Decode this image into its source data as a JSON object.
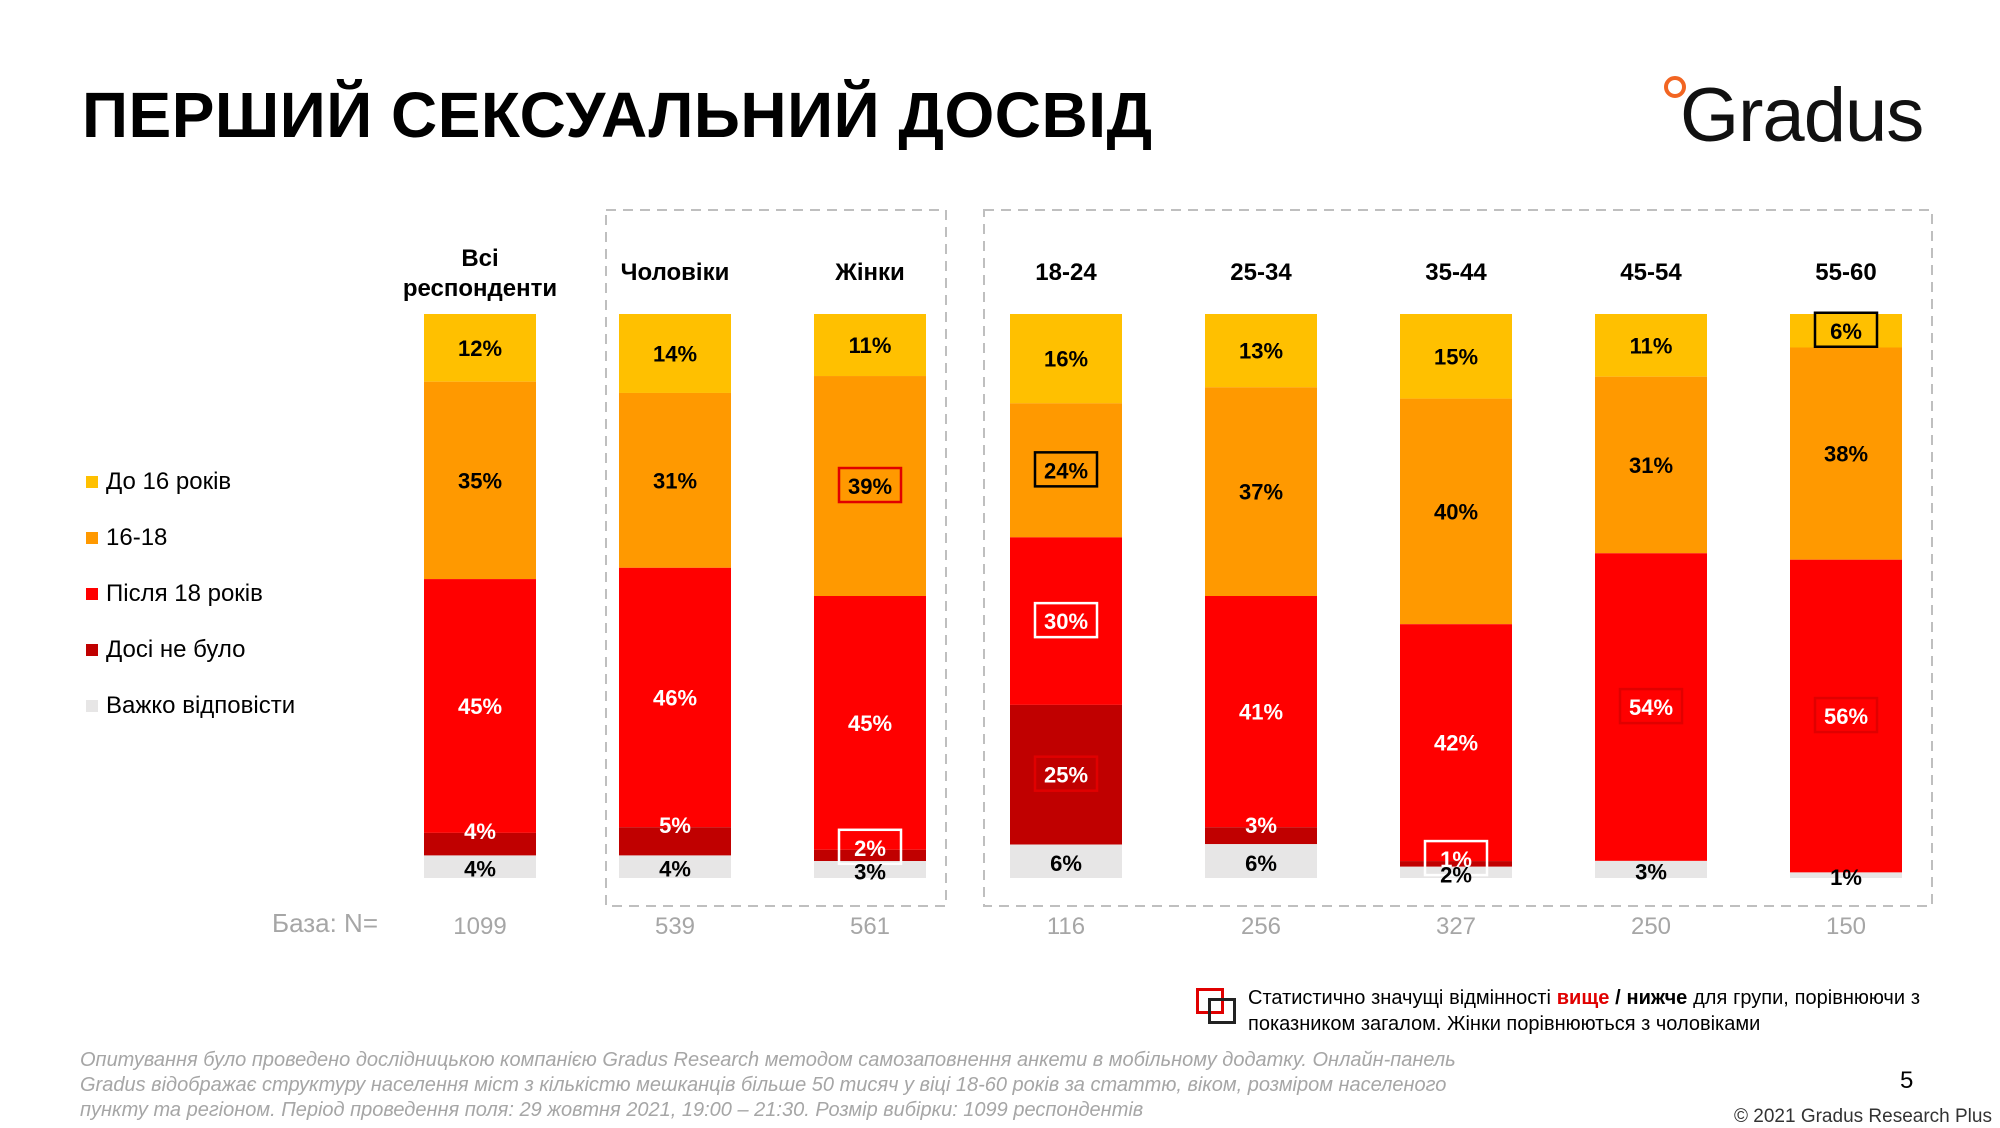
{
  "title": "ПЕРШИЙ СЕКСУАЛЬНИЙ ДОСВІД",
  "logo": "Gradus",
  "legend": [
    {
      "label": "До 16 років",
      "color": "#ffc000"
    },
    {
      "label": "16-18",
      "color": "#ff9900"
    },
    {
      "label": "Після 18 років",
      "color": "#ff0000"
    },
    {
      "label": "Досі не було",
      "color": "#c00000"
    },
    {
      "label": "Важко відповісти",
      "color": "#e7e6e6"
    }
  ],
  "base_label": "База: N=",
  "chart_data": {
    "type": "bar",
    "stacked": true,
    "title": "ПЕРШИЙ СЕКСУАЛЬНИЙ ДОСВІД",
    "categories": [
      "Всі респонденти",
      "Чоловіки",
      "Жінки",
      "18-24",
      "25-34",
      "35-44",
      "45-54",
      "55-60"
    ],
    "series": [
      {
        "name": "До 16 років",
        "color": "#ffc000",
        "values": [
          12,
          14,
          11,
          16,
          13,
          15,
          11,
          6
        ]
      },
      {
        "name": "16-18",
        "color": "#ff9900",
        "values": [
          35,
          31,
          39,
          24,
          37,
          40,
          31,
          38
        ]
      },
      {
        "name": "Після 18 років",
        "color": "#ff0000",
        "values": [
          45,
          46,
          45,
          30,
          41,
          42,
          54,
          56
        ]
      },
      {
        "name": "Досі не було",
        "color": "#c00000",
        "values": [
          4,
          5,
          2,
          25,
          3,
          1,
          0,
          0
        ]
      },
      {
        "name": "Важко відповісти",
        "color": "#e7e6e6",
        "values": [
          4,
          4,
          3,
          6,
          6,
          2,
          3,
          1
        ]
      }
    ],
    "labels": [
      [
        "12%",
        "14%",
        "11%",
        "16%",
        "13%",
        "15%",
        "11%",
        "6%"
      ],
      [
        "35%",
        "31%",
        "39%",
        "24%",
        "37%",
        "40%",
        "31%",
        "38%"
      ],
      [
        "45%",
        "46%",
        "45%",
        "30%",
        "41%",
        "42%",
        "54%",
        "56%"
      ],
      [
        "4%",
        "5%",
        "2%",
        "25%",
        "3%",
        "1%",
        "",
        ""
      ],
      [
        "4%",
        "4%",
        "3%",
        "6%",
        "6%",
        "2%",
        "3%",
        "1%"
      ]
    ],
    "significance": [
      [
        "",
        "",
        "",
        "",
        "",
        "",
        "",
        "lower"
      ],
      [
        "",
        "",
        "higher",
        "lower",
        "",
        "",
        "",
        ""
      ],
      [
        "",
        "",
        "",
        "lower",
        "",
        "",
        "higher",
        "higher"
      ],
      [
        "",
        "",
        "lower",
        "higher",
        "",
        "lower",
        "",
        ""
      ],
      [
        "",
        "",
        "",
        "",
        "",
        "",
        "",
        ""
      ]
    ],
    "base_n": [
      "1099",
      "539",
      "561",
      "116",
      "256",
      "327",
      "250",
      "150"
    ],
    "ylim": [
      0,
      100
    ],
    "legend_position": "left",
    "groups": [
      {
        "name": "gender",
        "categories": [
          1,
          2
        ]
      },
      {
        "name": "age",
        "categories": [
          3,
          4,
          5,
          6,
          7
        ]
      }
    ]
  },
  "significance_note": {
    "prefix": "Статистично значущі відмінності ",
    "higher": "вище",
    "sep": " / ",
    "lower": "нижче",
    "suffix": " для групи, порівнюючи з показником загалом. Жінки порівнюються з чоловіками"
  },
  "footnote": "Опитування було проведено дослідницькою компанією Gradus Research методом самозаповнення анкети в мобільному додатку. Онлайн-панель Gradus відображає структуру населення міст з кількістю мешканців більше 50 тисяч у віці 18-60 років за статтю, віком, розміром населеного пункту та регіоном. Період проведення поля: 29 жовтня 2021, 19:00 – 21:30. Розмір вибірки: 1099 респондентів",
  "page_number": "5",
  "copyright": "© 2021 Gradus Research Plus"
}
